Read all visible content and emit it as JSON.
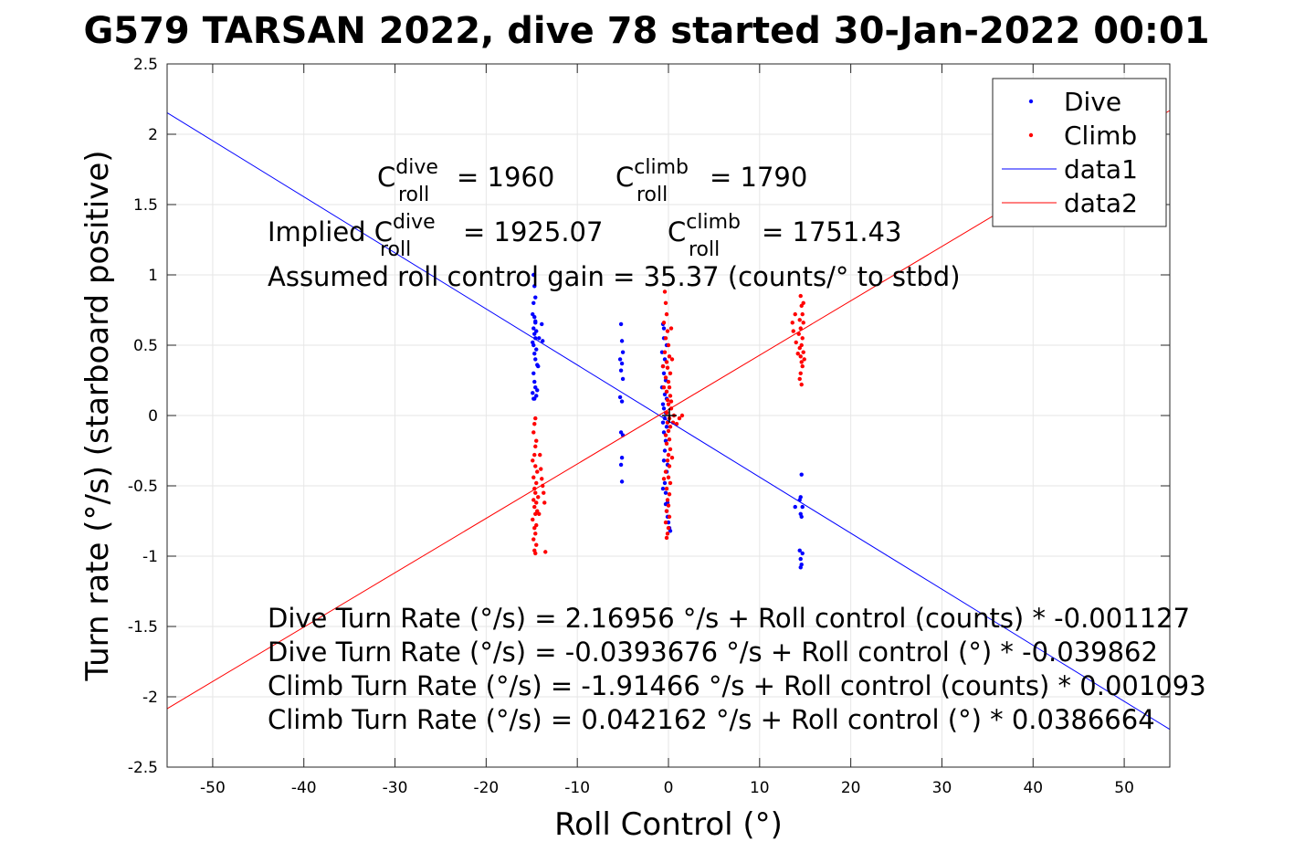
{
  "chart_data": {
    "type": "scatter",
    "title": "G579 TARSAN 2022, dive 78 started 30-Jan-2022 00:01",
    "xlabel": "Roll Control (°)",
    "ylabel": "Turn rate (°/s) (starboard positive)",
    "xlim": [
      -55,
      55
    ],
    "ylim": [
      -2.5,
      2.5
    ],
    "xticks": [
      -50,
      -40,
      -30,
      -20,
      -10,
      0,
      10,
      20,
      30,
      40,
      50
    ],
    "xtick_labels": [
      "-50",
      "-40",
      "-30",
      "-20",
      "-10",
      "0",
      "10",
      "20",
      "30",
      "40",
      "50"
    ],
    "yticks": [
      -2.5,
      -2,
      -1.5,
      -1,
      -0.5,
      0,
      0.5,
      1,
      1.5,
      2,
      2.5
    ],
    "ytick_labels": [
      "-2.5",
      "-2",
      "-1.5",
      "-1",
      "-0.5",
      "0",
      "0.5",
      "1",
      "1.5",
      "2",
      "2.5"
    ],
    "grid": true,
    "legend_position": "top-right",
    "colors": {
      "dive": "#0000ff",
      "climb": "#ff0000",
      "axes": "#262626",
      "grid": "#e6e6e6"
    },
    "legend": [
      {
        "label": "Dive",
        "marker": "dot",
        "color": "#0000ff"
      },
      {
        "label": "Climb",
        "marker": "dot",
        "color": "#ff0000"
      },
      {
        "label": "data1",
        "marker": "line",
        "color": "#0000ff"
      },
      {
        "label": "data2",
        "marker": "line",
        "color": "#ff0000"
      }
    ],
    "fit_lines": [
      {
        "name": "data1",
        "color": "#0000ff",
        "intercept": -0.0393676,
        "slope": -0.039862
      },
      {
        "name": "data2",
        "color": "#ff0000",
        "intercept": 0.042162,
        "slope": 0.0386664
      }
    ],
    "series": [
      {
        "name": "Dive",
        "color": "#0000ff",
        "points": [
          [
            -14.8,
            1.0
          ],
          [
            -14.7,
            0.92
          ],
          [
            -14.6,
            0.84
          ],
          [
            -14.8,
            0.8
          ],
          [
            -14.9,
            0.72
          ],
          [
            -14.7,
            0.7
          ],
          [
            -14.6,
            0.66
          ],
          [
            -14.8,
            0.62
          ],
          [
            -14.5,
            0.6
          ],
          [
            -14.7,
            0.58
          ],
          [
            -14.6,
            0.55
          ],
          [
            -14.9,
            0.52
          ],
          [
            -14.8,
            0.5
          ],
          [
            -14.5,
            0.47
          ],
          [
            -14.7,
            0.44
          ],
          [
            -14.6,
            0.4
          ],
          [
            -14.4,
            0.36
          ],
          [
            -14.8,
            0.3
          ],
          [
            -14.7,
            0.24
          ],
          [
            -14.6,
            0.2
          ],
          [
            -14.9,
            0.16
          ],
          [
            -14.5,
            0.14
          ],
          [
            -14.7,
            0.12
          ],
          [
            -14.3,
            0.35
          ],
          [
            -14.6,
            0.67
          ],
          [
            -14.2,
            0.55
          ],
          [
            -14.8,
            0.12
          ],
          [
            -14.4,
            0.18
          ],
          [
            -13.9,
            0.65
          ],
          [
            -13.8,
            0.53
          ],
          [
            -5.2,
            0.65
          ],
          [
            -5.1,
            0.53
          ],
          [
            -5.0,
            0.45
          ],
          [
            -5.3,
            0.4
          ],
          [
            -5.1,
            0.37
          ],
          [
            -5.2,
            0.32
          ],
          [
            -5.0,
            0.26
          ],
          [
            -5.3,
            0.13
          ],
          [
            -5.1,
            0.1
          ],
          [
            -5.2,
            -0.12
          ],
          [
            -5.0,
            -0.14
          ],
          [
            -5.1,
            -0.3
          ],
          [
            -5.2,
            -0.35
          ],
          [
            -5.1,
            -0.47
          ],
          [
            -0.6,
            0.65
          ],
          [
            -0.5,
            0.55
          ],
          [
            -0.7,
            0.45
          ],
          [
            -0.4,
            0.4
          ],
          [
            -0.6,
            0.35
          ],
          [
            -0.5,
            0.3
          ],
          [
            -0.3,
            0.25
          ],
          [
            -0.7,
            0.2
          ],
          [
            -0.4,
            0.15
          ],
          [
            -0.2,
            0.12
          ],
          [
            -0.6,
            0.08
          ],
          [
            -0.5,
            0.05
          ],
          [
            -0.3,
            0.02
          ],
          [
            -0.4,
            -0.02
          ],
          [
            -0.6,
            -0.05
          ],
          [
            -0.2,
            -0.08
          ],
          [
            -0.5,
            -0.12
          ],
          [
            -0.3,
            -0.18
          ],
          [
            -0.4,
            -0.25
          ],
          [
            -0.5,
            -0.32
          ],
          [
            -0.2,
            -0.4
          ],
          [
            -0.4,
            -0.48
          ],
          [
            -0.3,
            -0.55
          ],
          [
            -0.1,
            -0.62
          ],
          [
            -0.2,
            -0.68
          ],
          [
            -0.1,
            -0.72
          ],
          [
            0.0,
            -0.76
          ],
          [
            0.1,
            -0.8
          ],
          [
            -0.3,
            -0.63
          ],
          [
            -0.6,
            -0.52
          ],
          [
            -0.1,
            -0.35
          ],
          [
            0.2,
            -0.82
          ],
          [
            -0.5,
            0.62
          ],
          [
            -0.2,
            0.5
          ],
          [
            13.9,
            -0.65
          ],
          [
            14.6,
            -0.42
          ],
          [
            14.5,
            -0.58
          ],
          [
            14.4,
            -0.6
          ],
          [
            14.7,
            -0.65
          ],
          [
            14.5,
            -0.7
          ],
          [
            14.6,
            -0.72
          ],
          [
            14.4,
            -0.96
          ],
          [
            14.7,
            -0.98
          ],
          [
            14.5,
            -1.02
          ],
          [
            14.6,
            -1.06
          ],
          [
            14.5,
            -1.08
          ]
        ]
      },
      {
        "name": "Climb",
        "color": "#ff0000",
        "points": [
          [
            -14.6,
            -0.02
          ],
          [
            -14.7,
            -0.06
          ],
          [
            -14.8,
            -0.12
          ],
          [
            -14.5,
            -0.18
          ],
          [
            -14.6,
            -0.22
          ],
          [
            -14.7,
            -0.28
          ],
          [
            -14.9,
            -0.32
          ],
          [
            -14.6,
            -0.36
          ],
          [
            -14.4,
            -0.4
          ],
          [
            -14.8,
            -0.44
          ],
          [
            -14.5,
            -0.48
          ],
          [
            -14.7,
            -0.52
          ],
          [
            -14.6,
            -0.55
          ],
          [
            -14.3,
            -0.58
          ],
          [
            -14.8,
            -0.6
          ],
          [
            -14.5,
            -0.62
          ],
          [
            -14.7,
            -0.65
          ],
          [
            -14.4,
            -0.68
          ],
          [
            -14.6,
            -0.7
          ],
          [
            -14.9,
            -0.74
          ],
          [
            -14.5,
            -0.78
          ],
          [
            -14.7,
            -0.8
          ],
          [
            -14.6,
            -0.84
          ],
          [
            -14.8,
            -0.88
          ],
          [
            -14.5,
            -0.92
          ],
          [
            -14.7,
            -0.96
          ],
          [
            -14.6,
            -0.98
          ],
          [
            -13.8,
            -0.5
          ],
          [
            -13.6,
            -0.62
          ],
          [
            -13.7,
            -0.55
          ],
          [
            -14.0,
            -0.38
          ],
          [
            -13.5,
            -0.97
          ],
          [
            -14.2,
            -0.7
          ],
          [
            -14.1,
            -0.28
          ],
          [
            -13.9,
            -0.45
          ],
          [
            -0.4,
            0.88
          ],
          [
            -0.3,
            0.8
          ],
          [
            -0.2,
            0.72
          ],
          [
            -0.5,
            0.66
          ],
          [
            -0.1,
            0.6
          ],
          [
            -0.3,
            0.55
          ],
          [
            0.0,
            0.5
          ],
          [
            -0.4,
            0.45
          ],
          [
            0.1,
            0.42
          ],
          [
            -0.2,
            0.38
          ],
          [
            -0.1,
            0.34
          ],
          [
            0.2,
            0.3
          ],
          [
            -0.3,
            0.27
          ],
          [
            0.0,
            0.24
          ],
          [
            0.1,
            0.2
          ],
          [
            -0.2,
            0.17
          ],
          [
            0.2,
            0.14
          ],
          [
            -0.1,
            0.11
          ],
          [
            0.0,
            0.08
          ],
          [
            0.3,
            0.05
          ],
          [
            -0.2,
            0.02
          ],
          [
            0.1,
            -0.02
          ],
          [
            -0.1,
            -0.05
          ],
          [
            0.2,
            -0.08
          ],
          [
            0.0,
            -0.11
          ],
          [
            -0.3,
            -0.14
          ],
          [
            0.1,
            -0.17
          ],
          [
            -0.2,
            -0.2
          ],
          [
            0.2,
            -0.24
          ],
          [
            0.0,
            -0.28
          ],
          [
            -0.1,
            -0.32
          ],
          [
            0.1,
            -0.36
          ],
          [
            -0.3,
            -0.4
          ],
          [
            0.0,
            -0.44
          ],
          [
            0.2,
            -0.48
          ],
          [
            -0.2,
            -0.52
          ],
          [
            0.1,
            -0.56
          ],
          [
            -0.1,
            -0.6
          ],
          [
            0.0,
            -0.64
          ],
          [
            -0.2,
            -0.68
          ],
          [
            0.1,
            -0.72
          ],
          [
            -0.3,
            -0.76
          ],
          [
            0.0,
            -0.8
          ],
          [
            -0.1,
            -0.84
          ],
          [
            -0.2,
            -0.87
          ],
          [
            0.3,
            0.62
          ],
          [
            0.4,
            0.4
          ],
          [
            -0.5,
            0.2
          ],
          [
            0.4,
            -0.3
          ],
          [
            -0.5,
            -0.45
          ],
          [
            0.3,
            0.1
          ],
          [
            0.5,
            -0.05
          ],
          [
            -0.6,
            0.35
          ],
          [
            1.5,
            0.0
          ],
          [
            1.2,
            -0.02
          ],
          [
            0.6,
            0.0
          ],
          [
            0.9,
            -0.06
          ],
          [
            14.5,
            0.85
          ],
          [
            14.6,
            0.78
          ],
          [
            14.7,
            0.72
          ],
          [
            14.4,
            0.68
          ],
          [
            14.8,
            0.66
          ],
          [
            14.5,
            0.62
          ],
          [
            14.3,
            0.58
          ],
          [
            14.7,
            0.55
          ],
          [
            14.6,
            0.5
          ],
          [
            14.4,
            0.48
          ],
          [
            14.8,
            0.45
          ],
          [
            14.5,
            0.42
          ],
          [
            14.6,
            0.38
          ],
          [
            14.7,
            0.35
          ],
          [
            14.5,
            0.3
          ],
          [
            14.4,
            0.26
          ],
          [
            14.6,
            0.22
          ],
          [
            13.6,
            0.66
          ],
          [
            13.9,
            0.72
          ],
          [
            13.7,
            0.6
          ],
          [
            14.0,
            0.52
          ],
          [
            14.8,
            0.8
          ],
          [
            14.9,
            0.4
          ],
          [
            14.2,
            0.44
          ]
        ]
      }
    ],
    "annotations": {
      "c_roll": {
        "dive_prefix": "C",
        "dive_sup": "dive",
        "dive_sub": "roll",
        "dive_value": "= 1960",
        "climb_prefix": "C",
        "climb_sup": "climb",
        "climb_sub": "roll",
        "climb_value": "= 1790"
      },
      "implied": {
        "label": "Implied C",
        "dive_sup": "dive",
        "dive_sub": "roll",
        "dive_value": "= 1925.07",
        "climb_prefix": "C",
        "climb_sup": "climb",
        "climb_sub": "roll",
        "climb_value": "= 1751.43"
      },
      "gain": "Assumed roll control gain = 35.37 (counts/° to stbd)",
      "fit_equations": [
        "Dive Turn Rate (°/s) = 2.16956 °/s + Roll control (counts) * -0.001127",
        "Dive Turn Rate (°/s) = -0.0393676 °/s + Roll control (°) * -0.039862",
        "Climb Turn Rate (°/s) = -1.91466 °/s + Roll control (counts) * 0.001093",
        "Climb Turn Rate (°/s) = 0.042162 °/s + Roll control (°) * 0.0386664"
      ]
    }
  }
}
